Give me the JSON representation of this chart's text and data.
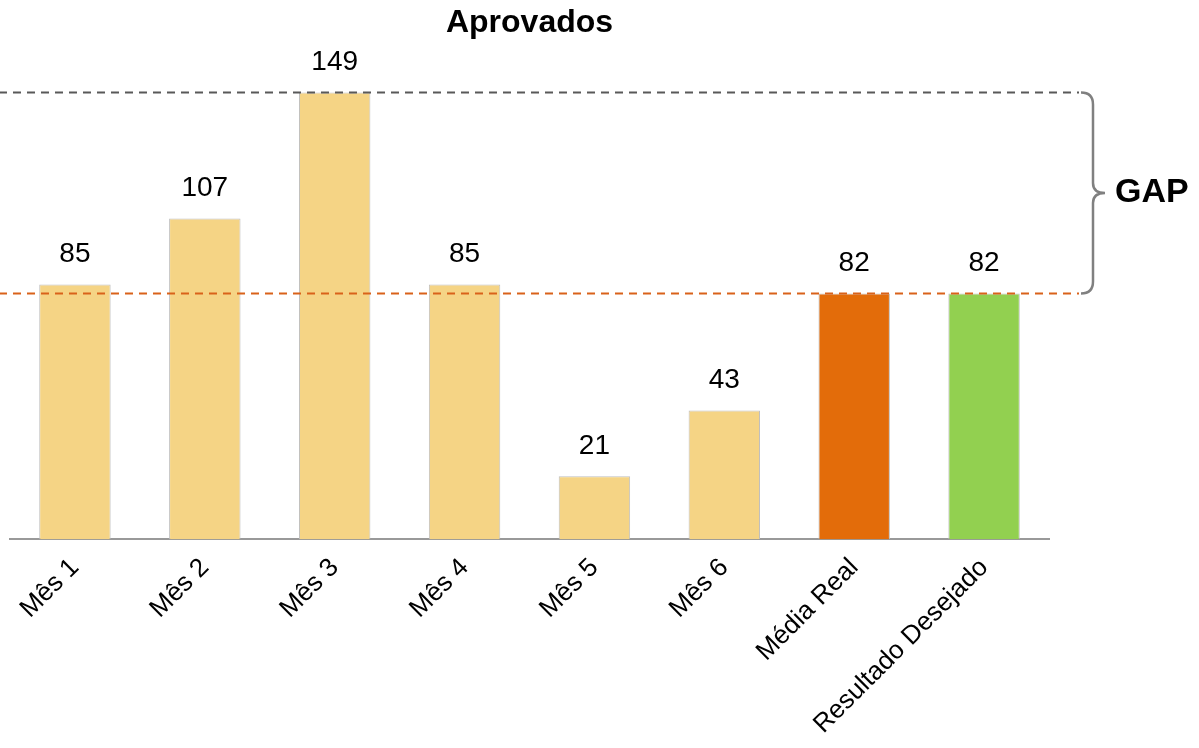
{
  "chart_data": {
    "type": "bar",
    "title": "Aprovados",
    "categories": [
      "Mês 1",
      "Mês 2",
      "Mês 3",
      "Mês 4",
      "Mês 5",
      "Mês 6",
      "Média Real",
      "Resultado Desejado"
    ],
    "values": [
      85,
      107,
      149,
      85,
      21,
      43,
      82,
      82
    ],
    "colors": [
      "#f5d485",
      "#f5d485",
      "#f5d485",
      "#f5d485",
      "#f5d485",
      "#f5d485",
      "#e36c0a",
      "#92d050"
    ],
    "data_labels": true,
    "grid": false,
    "legend": false,
    "ref_lines": [
      {
        "axis": "y",
        "value": 149,
        "color": "#595959",
        "line_style": "dashed"
      },
      {
        "axis": "y",
        "value": 82,
        "color": "#d9621a",
        "line_style": "dashed"
      }
    ],
    "annotations": [
      "GAP"
    ]
  }
}
